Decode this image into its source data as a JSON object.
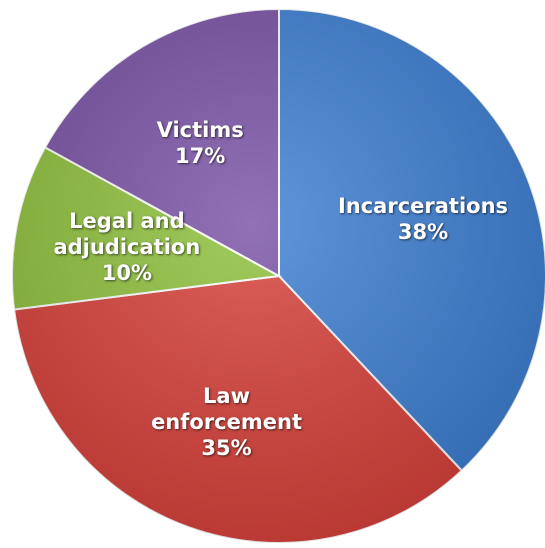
{
  "chart_data": {
    "type": "pie",
    "categories": [
      "Incarcerations",
      "Law enforcement",
      "Legal and adjudication",
      "Victims"
    ],
    "values": [
      38,
      35,
      10,
      17
    ],
    "value_labels": [
      "38%",
      "35%",
      "10%",
      "17%"
    ],
    "colors": [
      "#3d7fd3",
      "#d8403a",
      "#8ec03b",
      "#7a52a6"
    ]
  }
}
